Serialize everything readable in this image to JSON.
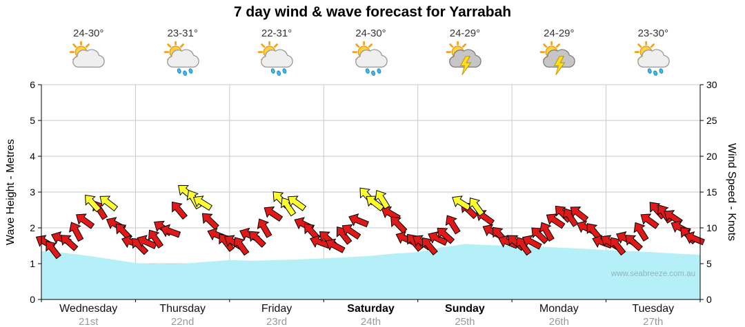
{
  "title": "7 day wind & wave forecast for Yarrabah",
  "watermark": "www.seabreeze.com.au",
  "axes": {
    "left_label": "Wave Height - Metres",
    "right_label": "Wind Speed - Knots",
    "left_ticks": [
      0,
      1,
      2,
      3,
      4,
      5,
      6
    ],
    "right_ticks": [
      0,
      5,
      10,
      15,
      20,
      25,
      30
    ]
  },
  "days": [
    {
      "name": "Wednesday",
      "date": "21st",
      "temp": "24-30°",
      "icon": "partly-cloudy",
      "bold": false
    },
    {
      "name": "Thursday",
      "date": "22nd",
      "temp": "23-31°",
      "icon": "showers",
      "bold": false
    },
    {
      "name": "Friday",
      "date": "23rd",
      "temp": "22-31°",
      "icon": "showers",
      "bold": false
    },
    {
      "name": "Saturday",
      "date": "24th",
      "temp": "24-30°",
      "icon": "showers",
      "bold": true
    },
    {
      "name": "Sunday",
      "date": "25th",
      "temp": "24-29°",
      "icon": "storms",
      "bold": true
    },
    {
      "name": "Monday",
      "date": "26th",
      "temp": "24-29°",
      "icon": "storms",
      "bold": false
    },
    {
      "name": "Tuesday",
      "date": "27th",
      "temp": "23-30°",
      "icon": "showers",
      "bold": false
    }
  ],
  "colors": {
    "wave_fill": "#b5f0f8",
    "arrow_normal": "#e01818",
    "arrow_strong": "#ffff30",
    "grid": "#c9c9c9",
    "axis": "#000000"
  },
  "chart_data": {
    "type": "area",
    "title": "7 day wind & wave forecast for Yarrabah",
    "x_categories": [
      "Wednesday 21st",
      "Thursday 22nd",
      "Friday 23rd",
      "Saturday 24th",
      "Sunday 25th",
      "Monday 26th",
      "Tuesday 27th"
    ],
    "left_axis": {
      "label": "Wave Height - Metres",
      "range": [
        0,
        6
      ],
      "ticks": [
        0,
        1,
        2,
        3,
        4,
        5,
        6
      ]
    },
    "right_axis": {
      "label": "Wind Speed - Knots",
      "range": [
        0,
        30
      ],
      "ticks": [
        0,
        5,
        10,
        15,
        20,
        25,
        30
      ]
    },
    "wave_height_m": {
      "x_start_days": 0,
      "x_step_days": 0.25,
      "values": [
        1.35,
        1.3,
        1.22,
        1.12,
        1.02,
        0.98,
        1.0,
        1.05,
        1.1,
        1.08,
        1.1,
        1.12,
        1.15,
        1.18,
        1.22,
        1.28,
        1.32,
        1.45,
        1.55,
        1.52,
        1.5,
        1.48,
        1.45,
        1.42,
        1.38,
        1.35,
        1.32,
        1.28,
        1.25
      ]
    },
    "wind": {
      "units": "knots",
      "strong_threshold_knots": 13,
      "point_format": [
        "day_fraction",
        "knots",
        "arrow_heading_deg"
      ],
      "points": [
        [
          0.04,
          8,
          -150
        ],
        [
          0.12,
          7,
          -128
        ],
        [
          0.21,
          8.5,
          -158
        ],
        [
          0.29,
          8,
          -138
        ],
        [
          0.37,
          9.5,
          -118
        ],
        [
          0.46,
          11,
          -144
        ],
        [
          0.54,
          13.5,
          -132
        ],
        [
          0.62,
          12.5,
          -122
        ],
        [
          0.71,
          13.5,
          -142
        ],
        [
          0.79,
          10.5,
          -152
        ],
        [
          0.87,
          9.5,
          -134
        ],
        [
          0.96,
          8,
          -162
        ],
        [
          1.04,
          7.5,
          -135
        ],
        [
          1.12,
          8,
          -155
        ],
        [
          1.21,
          8.5,
          -125
        ],
        [
          1.29,
          10,
          -145
        ],
        [
          1.37,
          9.5,
          -160
        ],
        [
          1.46,
          12.5,
          -130
        ],
        [
          1.54,
          15,
          -140
        ],
        [
          1.62,
          14,
          -120
        ],
        [
          1.71,
          13.5,
          -148
        ],
        [
          1.79,
          11,
          -136
        ],
        [
          1.87,
          9,
          -158
        ],
        [
          1.96,
          8,
          -128
        ],
        [
          2.04,
          8,
          -148
        ],
        [
          2.12,
          7.5,
          -126
        ],
        [
          2.21,
          9,
          -156
        ],
        [
          2.29,
          8.5,
          -136
        ],
        [
          2.37,
          10,
          -120
        ],
        [
          2.46,
          12,
          -146
        ],
        [
          2.54,
          14,
          -134
        ],
        [
          2.62,
          13,
          -124
        ],
        [
          2.71,
          13.5,
          -144
        ],
        [
          2.79,
          10.5,
          -154
        ],
        [
          2.87,
          9.5,
          -132
        ],
        [
          2.96,
          8,
          -160
        ],
        [
          3.04,
          8.5,
          -138
        ],
        [
          3.12,
          7.5,
          -152
        ],
        [
          3.21,
          9,
          -128
        ],
        [
          3.29,
          9.5,
          -146
        ],
        [
          3.37,
          11,
          -158
        ],
        [
          3.46,
          14.5,
          -132
        ],
        [
          3.54,
          13.5,
          -142
        ],
        [
          3.62,
          14,
          -122
        ],
        [
          3.71,
          12,
          -150
        ],
        [
          3.79,
          10.5,
          -134
        ],
        [
          3.87,
          8.5,
          -156
        ],
        [
          3.96,
          8,
          -130
        ],
        [
          4.04,
          8,
          -146
        ],
        [
          4.12,
          7.5,
          -130
        ],
        [
          4.21,
          8.5,
          -154
        ],
        [
          4.29,
          9,
          -138
        ],
        [
          4.37,
          10.5,
          -122
        ],
        [
          4.46,
          13.5,
          -148
        ],
        [
          4.54,
          12.5,
          -136
        ],
        [
          4.62,
          13,
          -126
        ],
        [
          4.71,
          11.5,
          -144
        ],
        [
          4.79,
          9.5,
          -152
        ],
        [
          4.87,
          9,
          -132
        ],
        [
          4.96,
          8,
          -158
        ],
        [
          5.04,
          8,
          -140
        ],
        [
          5.12,
          7.5,
          -126
        ],
        [
          5.21,
          8,
          -152
        ],
        [
          5.29,
          9,
          -136
        ],
        [
          5.37,
          9.5,
          -120
        ],
        [
          5.46,
          11,
          -146
        ],
        [
          5.54,
          12,
          -134
        ],
        [
          5.62,
          11.5,
          -124
        ],
        [
          5.71,
          12,
          -142
        ],
        [
          5.79,
          10,
          -154
        ],
        [
          5.87,
          9.5,
          -130
        ],
        [
          5.96,
          8,
          -160
        ],
        [
          6.04,
          8,
          -148
        ],
        [
          6.12,
          7.5,
          -128
        ],
        [
          6.21,
          8.5,
          -154
        ],
        [
          6.29,
          8,
          -138
        ],
        [
          6.37,
          9.5,
          -122
        ],
        [
          6.46,
          11,
          -144
        ],
        [
          6.54,
          12.5,
          -132
        ],
        [
          6.62,
          12,
          -124
        ],
        [
          6.71,
          11.5,
          -146
        ],
        [
          6.79,
          10,
          -152
        ],
        [
          6.87,
          9,
          -134
        ],
        [
          6.94,
          8.5,
          -158
        ]
      ]
    }
  }
}
